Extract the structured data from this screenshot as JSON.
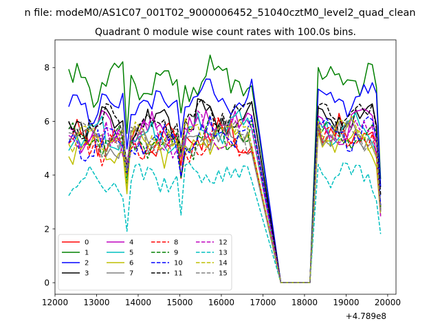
{
  "suptitle": "n file: modeM0/AS1C07_001T02_9000006452_51040cztM0_level2_quad_clean",
  "chart_data": {
    "type": "line",
    "title": "Quadrant 0 module wise count rates with 100.0s bins.",
    "xlabel": "",
    "ylabel": "",
    "x_offset_label": "+4.789e8",
    "xlim": [
      12000,
      20200
    ],
    "ylim": [
      -0.43,
      9.03
    ],
    "x_ticks": [
      12000,
      13000,
      14000,
      15000,
      16000,
      17000,
      18000,
      19000,
      20000
    ],
    "x_tick_labels": [
      "12000",
      "13000",
      "14000",
      "15000",
      "16000",
      "17000",
      "18000",
      "19000",
      "20000"
    ],
    "y_ticks": [
      0,
      2,
      4,
      6,
      8
    ],
    "y_tick_labels": [
      "0",
      "2",
      "4",
      "6",
      "8"
    ],
    "grid": false,
    "legend": {
      "placement": "lower-left",
      "ncol": 4
    },
    "x_range": {
      "start": 12330,
      "step": 100,
      "count": 76
    },
    "segment1_points": 45,
    "gap_level": 0,
    "gap_x": [
      17430,
      17630,
      17830,
      18030,
      18130
    ],
    "series": [
      {
        "name": "0",
        "color": "#ff0000",
        "dash": "solid",
        "mean": 5.3,
        "amp": 0.35,
        "peak": 6.3,
        "phase": 0.3
      },
      {
        "name": "1",
        "color": "#008000",
        "dash": "solid",
        "mean": 7.4,
        "amp": 0.45,
        "peak": 8.6,
        "phase": 1.1
      },
      {
        "name": "2",
        "color": "#0000ff",
        "dash": "solid",
        "mean": 6.6,
        "amp": 0.4,
        "peak": 7.8,
        "phase": 2.0
      },
      {
        "name": "3",
        "color": "#000000",
        "dash": "solid",
        "mean": 5.9,
        "amp": 0.35,
        "peak": 6.6,
        "phase": 2.7
      },
      {
        "name": "4",
        "color": "#bf00bf",
        "dash": "solid",
        "mean": 5.6,
        "amp": 0.4,
        "peak": 6.8,
        "phase": 3.4
      },
      {
        "name": "5",
        "color": "#00bfbf",
        "dash": "solid",
        "mean": 5.5,
        "amp": 0.35,
        "peak": 6.2,
        "phase": 4.1
      },
      {
        "name": "6",
        "color": "#bfbf00",
        "dash": "solid",
        "mean": 5.0,
        "amp": 0.35,
        "peak": 5.9,
        "phase": 4.8
      },
      {
        "name": "7",
        "color": "#808080",
        "dash": "solid",
        "mean": 5.2,
        "amp": 0.35,
        "peak": 6.1,
        "phase": 5.5
      },
      {
        "name": "8",
        "color": "#ff0000",
        "dash": "dashed",
        "mean": 5.1,
        "amp": 0.35,
        "peak": 5.8,
        "phase": 0.8
      },
      {
        "name": "9",
        "color": "#008000",
        "dash": "dashed",
        "mean": 5.2,
        "amp": 0.35,
        "peak": 5.9,
        "phase": 1.6
      },
      {
        "name": "10",
        "color": "#0000ff",
        "dash": "dashed",
        "mean": 5.3,
        "amp": 0.4,
        "peak": 6.0,
        "phase": 2.3
      },
      {
        "name": "11",
        "color": "#000000",
        "dash": "dashed",
        "mean": 6.0,
        "amp": 0.4,
        "peak": 6.8,
        "phase": 3.0
      },
      {
        "name": "12",
        "color": "#bf00bf",
        "dash": "dashed",
        "mean": 5.4,
        "amp": 0.35,
        "peak": 6.4,
        "phase": 3.8
      },
      {
        "name": "13",
        "color": "#00bfbf",
        "dash": "dashed",
        "mean": 3.8,
        "amp": 0.3,
        "peak": 4.2,
        "phase": 4.5
      },
      {
        "name": "14",
        "color": "#bfbf00",
        "dash": "dashed",
        "mean": 5.4,
        "amp": 0.35,
        "peak": 6.1,
        "phase": 5.2
      },
      {
        "name": "15",
        "color": "#808080",
        "dash": "dashed",
        "mean": 5.3,
        "amp": 0.35,
        "peak": 6.0,
        "phase": 5.9
      }
    ]
  }
}
